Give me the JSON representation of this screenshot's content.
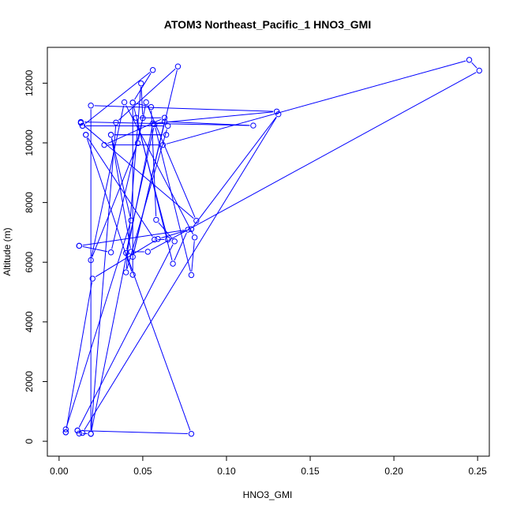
{
  "chart_data": {
    "type": "line",
    "title": "ATOM3 Northeast_Pacific_1 HNO3_GMI",
    "xlabel": "HNO3_GMI",
    "ylabel": "Altitude (m)",
    "xlim": [
      -0.007,
      0.257
    ],
    "ylim": [
      -500,
      13200
    ],
    "xticks": [
      0.0,
      0.05,
      0.1,
      0.15,
      0.2,
      0.25
    ],
    "xtick_labels": [
      "0.00",
      "0.05",
      "0.10",
      "0.15",
      "0.20",
      "0.25"
    ],
    "yticks": [
      0,
      2000,
      4000,
      6000,
      8000,
      10000,
      12000
    ],
    "ytick_labels": [
      "0",
      "2000",
      "4000",
      "6000",
      "8000",
      "10000",
      "12000"
    ],
    "grid": false,
    "color": "#0000ff",
    "marker": "open-circle",
    "series": [
      {
        "x": [
          0.004,
          0.004,
          0.02,
          0.059,
          0.079,
          0.131,
          0.014,
          0.012,
          0.019,
          0.056,
          0.13,
          0.019,
          0.019,
          0.034,
          0.071,
          0.044,
          0.063,
          0.116,
          0.013,
          0.013,
          0.082,
          0.052,
          0.047,
          0.019,
          0.039,
          0.081,
          0.079,
          0.057,
          0.04,
          0.079,
          0.011,
          0.011,
          0.069,
          0.058,
          0.055,
          0.044,
          0.068,
          0.077,
          0.012,
          0.012,
          0.031,
          0.05,
          0.049,
          0.04,
          0.065,
          0.014,
          0.014,
          0.056,
          0.044,
          0.044,
          0.016,
          0.016,
          0.057,
          0.065,
          0.046,
          0.063,
          0.027,
          0.062,
          0.245,
          0.251,
          0.053,
          0.043,
          0.031,
          0.064,
          0.031,
          0.043,
          0.004
        ],
        "y": [
          300,
          300,
          5450,
          6780,
          7110,
          10960,
          280,
          260,
          250,
          10650,
          11050,
          11250,
          250,
          10680,
          12560,
          6180,
          10710,
          10580,
          10700,
          10670,
          7390,
          11360,
          9990,
          6070,
          11360,
          6830,
          5570,
          10620,
          6310,
          250,
          360,
          360,
          6700,
          7420,
          11200,
          11350,
          5950,
          7090,
          6550,
          6550,
          6330,
          10830,
          11990,
          5660,
          10570,
          10570,
          10570,
          12440,
          11350,
          5580,
          10270,
          10270,
          6760,
          6760,
          10840,
          10840,
          9930,
          9930,
          12780,
          12420,
          6350,
          6350,
          10270,
          10270,
          10270,
          7400,
          400
        ]
      }
    ]
  }
}
